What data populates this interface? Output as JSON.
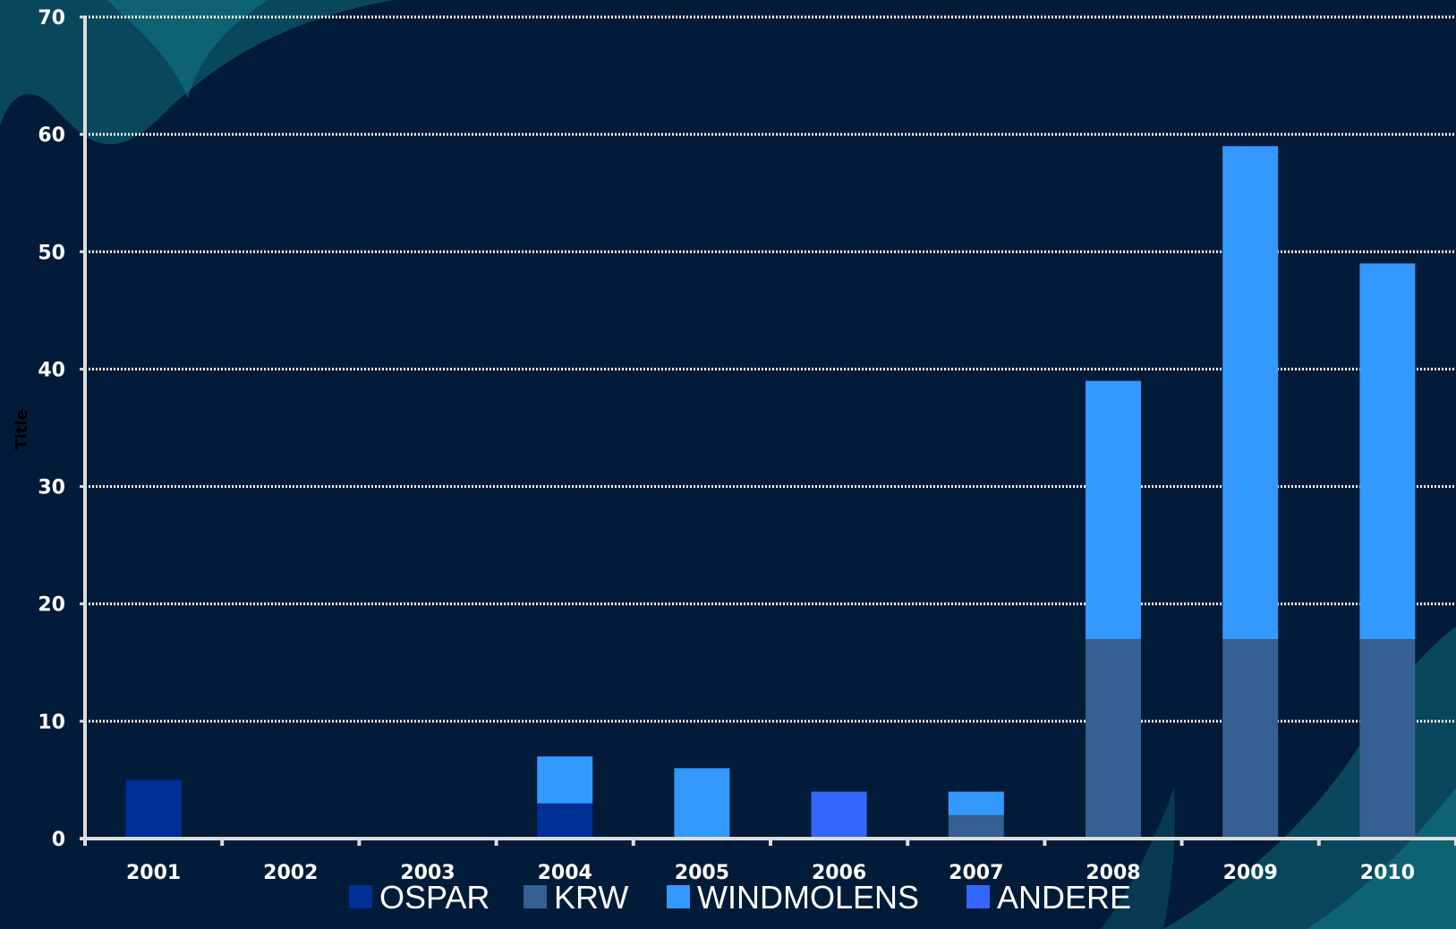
{
  "chart_data": {
    "type": "bar",
    "stacked": true,
    "title": "",
    "xlabel": "",
    "ylabel": "Title",
    "ylim": [
      0,
      70
    ],
    "yticks": [
      0,
      10,
      20,
      30,
      40,
      50,
      60,
      70
    ],
    "grid": true,
    "legend_position": "bottom",
    "categories": [
      "2001",
      "2002",
      "2003",
      "2004",
      "2005",
      "2006",
      "2007",
      "2008",
      "2009",
      "2010"
    ],
    "series": [
      {
        "name": "OSPAR",
        "color": "#002f95",
        "values": [
          5,
          0,
          0,
          3,
          0,
          0,
          0,
          0,
          0,
          0
        ]
      },
      {
        "name": "KRW",
        "color": "#365f92",
        "values": [
          0,
          0,
          0,
          0,
          0,
          0,
          2,
          17,
          17,
          17
        ]
      },
      {
        "name": "WINDMOLENS",
        "color": "#3399ff",
        "values": [
          0,
          0,
          0,
          4,
          6,
          0,
          2,
          22,
          42,
          32
        ]
      },
      {
        "name": "ANDERE",
        "color": "#3366ff",
        "values": [
          0,
          0,
          0,
          0,
          0,
          4,
          0,
          0,
          0,
          0
        ]
      }
    ]
  }
}
